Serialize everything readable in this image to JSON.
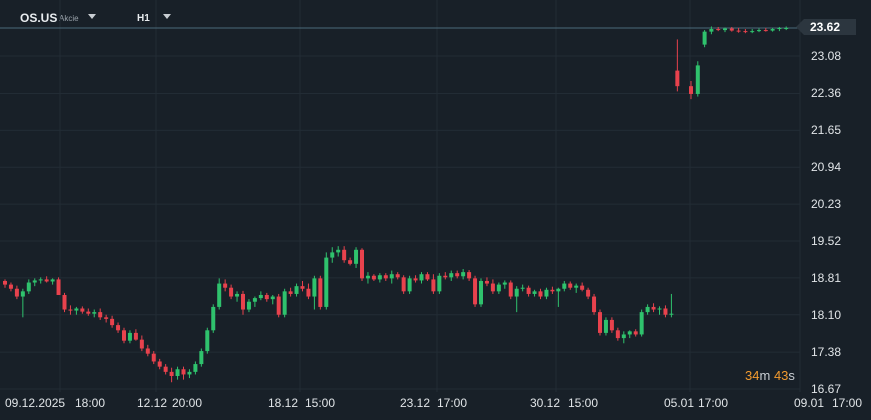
{
  "toolbar": {
    "symbol": "OS.US",
    "instrument_type": "Akcie",
    "timeframe": "H1"
  },
  "price_tag": "23.62",
  "countdown": {
    "minutes": "34",
    "minutes_unit": "m",
    "seconds": "43",
    "seconds_unit": "s"
  },
  "colors": {
    "background": "#182028",
    "up": "#2fc26d",
    "down": "#e8424d",
    "grid": "#222c35",
    "price_line": "#4a6a7a"
  },
  "chart_data": {
    "type": "candlestick",
    "y_ticks": [
      "23.62",
      "23.08",
      "22.36",
      "21.65",
      "20.94",
      "20.23",
      "19.52",
      "18.81",
      "18.10",
      "17.38",
      "16.67"
    ],
    "x_ticks": [
      "09.12.2025",
      "18:00",
      "12.12",
      "20:00",
      "18.12",
      "15:00",
      "23.12",
      "17:00",
      "30.12",
      "15:00",
      "05.01",
      "17:00",
      "09.01",
      "17:00"
    ],
    "ylim": [
      16.67,
      23.62
    ],
    "last_price": 23.62,
    "series": [
      {
        "values": [
          [
            18.75,
            18.78,
            18.62,
            18.68
          ],
          [
            18.68,
            18.72,
            18.55,
            18.6
          ],
          [
            18.6,
            18.66,
            18.4,
            18.45
          ],
          [
            18.45,
            18.6,
            18.05,
            18.55
          ],
          [
            18.55,
            18.78,
            18.5,
            18.72
          ],
          [
            18.72,
            18.8,
            18.65,
            18.76
          ],
          [
            18.76,
            18.82,
            18.7,
            18.78
          ],
          [
            18.78,
            18.84,
            18.72,
            18.74
          ],
          [
            18.74,
            18.8,
            18.68,
            18.78
          ],
          [
            18.78,
            18.82,
            18.6,
            18.48
          ],
          [
            18.48,
            18.52,
            18.15,
            18.2
          ],
          [
            18.2,
            18.28,
            18.1,
            18.18
          ],
          [
            18.18,
            18.25,
            18.1,
            18.22
          ],
          [
            18.22,
            18.26,
            18.12,
            18.16
          ],
          [
            18.16,
            18.22,
            18.08,
            18.12
          ],
          [
            18.12,
            18.2,
            18.05,
            18.15
          ],
          [
            18.15,
            18.22,
            18.0,
            18.05
          ],
          [
            18.05,
            18.1,
            17.95,
            18.02
          ],
          [
            18.02,
            18.08,
            17.85,
            17.9
          ],
          [
            17.9,
            17.95,
            17.75,
            17.8
          ],
          [
            17.8,
            17.85,
            17.55,
            17.6
          ],
          [
            17.6,
            17.8,
            17.55,
            17.75
          ],
          [
            17.75,
            17.82,
            17.6,
            17.62
          ],
          [
            17.62,
            17.7,
            17.4,
            17.45
          ],
          [
            17.45,
            17.52,
            17.3,
            17.35
          ],
          [
            17.35,
            17.4,
            17.15,
            17.2
          ],
          [
            17.2,
            17.25,
            17.05,
            17.1
          ],
          [
            17.1,
            17.15,
            16.95,
            17.0
          ],
          [
            17.0,
            17.08,
            16.8,
            16.92
          ],
          [
            16.92,
            17.1,
            16.85,
            17.05
          ],
          [
            17.05,
            17.1,
            16.85,
            16.95
          ],
          [
            16.95,
            17.05,
            16.88,
            17.0
          ],
          [
            17.0,
            17.2,
            16.95,
            17.15
          ],
          [
            17.15,
            17.45,
            17.1,
            17.4
          ],
          [
            17.4,
            17.85,
            17.35,
            17.8
          ],
          [
            17.8,
            18.3,
            17.75,
            18.25
          ],
          [
            18.25,
            18.8,
            18.2,
            18.7
          ],
          [
            18.7,
            18.78,
            18.55,
            18.62
          ],
          [
            18.62,
            18.68,
            18.4,
            18.45
          ],
          [
            18.45,
            18.55,
            18.35,
            18.5
          ],
          [
            18.5,
            18.56,
            18.1,
            18.2
          ],
          [
            18.2,
            18.4,
            18.15,
            18.35
          ],
          [
            18.35,
            18.45,
            18.25,
            18.42
          ],
          [
            18.42,
            18.55,
            18.38,
            18.48
          ],
          [
            18.48,
            18.52,
            18.35,
            18.4
          ],
          [
            18.4,
            18.48,
            18.3,
            18.45
          ],
          [
            18.45,
            18.5,
            18.05,
            18.1
          ],
          [
            18.1,
            18.6,
            18.05,
            18.55
          ],
          [
            18.55,
            18.62,
            18.45,
            18.5
          ],
          [
            18.5,
            18.7,
            18.45,
            18.65
          ],
          [
            18.65,
            18.75,
            18.55,
            18.6
          ],
          [
            18.6,
            18.7,
            18.4,
            18.45
          ],
          [
            18.45,
            18.85,
            18.2,
            18.8
          ],
          [
            18.8,
            18.85,
            18.2,
            18.25
          ],
          [
            18.25,
            19.3,
            18.2,
            19.2
          ],
          [
            19.2,
            19.4,
            19.1,
            19.3
          ],
          [
            19.3,
            19.42,
            19.22,
            19.35
          ],
          [
            19.35,
            19.42,
            19.1,
            19.15
          ],
          [
            19.15,
            19.2,
            19.05,
            19.08
          ],
          [
            19.08,
            19.4,
            19.0,
            19.35
          ],
          [
            19.35,
            19.38,
            18.75,
            18.8
          ],
          [
            18.8,
            18.92,
            18.7,
            18.85
          ],
          [
            18.85,
            18.88,
            18.75,
            18.78
          ],
          [
            18.78,
            18.9,
            18.72,
            18.86
          ],
          [
            18.86,
            18.9,
            18.75,
            18.8
          ],
          [
            18.8,
            18.95,
            18.7,
            18.88
          ],
          [
            18.88,
            18.92,
            18.78,
            18.82
          ],
          [
            18.82,
            18.86,
            18.5,
            18.55
          ],
          [
            18.55,
            18.85,
            18.5,
            18.8
          ],
          [
            18.8,
            18.86,
            18.72,
            18.76
          ],
          [
            18.76,
            18.92,
            18.7,
            18.88
          ],
          [
            18.88,
            18.92,
            18.75,
            18.78
          ],
          [
            18.78,
            18.88,
            18.5,
            18.55
          ],
          [
            18.55,
            18.9,
            18.5,
            18.85
          ],
          [
            18.85,
            18.92,
            18.78,
            18.82
          ],
          [
            18.82,
            18.95,
            18.75,
            18.9
          ],
          [
            18.9,
            18.95,
            18.8,
            18.84
          ],
          [
            18.84,
            18.98,
            18.78,
            18.92
          ],
          [
            18.92,
            18.96,
            18.75,
            18.8
          ],
          [
            18.8,
            18.85,
            18.25,
            18.3
          ],
          [
            18.3,
            18.8,
            18.25,
            18.75
          ],
          [
            18.75,
            18.82,
            18.65,
            18.7
          ],
          [
            18.7,
            18.78,
            18.5,
            18.55
          ],
          [
            18.55,
            18.72,
            18.5,
            18.68
          ],
          [
            18.68,
            18.76,
            18.6,
            18.72
          ],
          [
            18.72,
            18.76,
            18.4,
            18.45
          ],
          [
            18.45,
            18.65,
            18.15,
            18.6
          ],
          [
            18.6,
            18.68,
            18.55,
            18.62
          ],
          [
            18.62,
            18.66,
            18.45,
            18.5
          ],
          [
            18.5,
            18.58,
            18.45,
            18.55
          ],
          [
            18.55,
            18.6,
            18.4,
            18.45
          ],
          [
            18.45,
            18.62,
            18.4,
            18.58
          ],
          [
            18.58,
            18.64,
            18.5,
            18.55
          ],
          [
            18.55,
            18.62,
            18.25,
            18.6
          ],
          [
            18.6,
            18.75,
            18.55,
            18.7
          ],
          [
            18.7,
            18.74,
            18.58,
            18.62
          ],
          [
            18.62,
            18.7,
            18.52,
            18.66
          ],
          [
            18.66,
            18.72,
            18.55,
            18.58
          ],
          [
            18.58,
            18.62,
            18.4,
            18.45
          ],
          [
            18.45,
            18.5,
            18.1,
            18.15
          ],
          [
            18.15,
            18.2,
            17.7,
            17.75
          ],
          [
            17.75,
            18.05,
            17.7,
            18.0
          ],
          [
            18.0,
            18.05,
            17.75,
            17.8
          ],
          [
            17.8,
            17.85,
            17.6,
            17.65
          ],
          [
            17.65,
            17.78,
            17.55,
            17.72
          ],
          [
            17.72,
            17.8,
            17.65,
            17.78
          ],
          [
            17.78,
            17.82,
            17.68,
            17.72
          ],
          [
            17.72,
            18.2,
            17.68,
            18.15
          ],
          [
            18.15,
            18.3,
            18.1,
            18.25
          ],
          [
            18.25,
            18.32,
            18.15,
            18.2
          ],
          [
            18.2,
            18.26,
            18.1,
            18.22
          ],
          [
            18.22,
            18.28,
            18.05,
            18.1
          ],
          [
            18.1,
            18.5,
            18.05,
            18.12
          ],
          [
            22.8,
            23.4,
            22.4,
            22.5
          ],
          [
            22.5,
            22.6,
            22.25,
            22.35
          ],
          [
            22.35,
            22.98,
            22.3,
            22.9
          ],
          [
            23.3,
            23.58,
            23.25,
            23.55
          ],
          [
            23.55,
            23.65,
            23.5,
            23.6
          ],
          [
            23.6,
            23.64,
            23.56,
            23.58
          ],
          [
            23.58,
            23.63,
            23.54,
            23.61
          ],
          [
            23.61,
            23.64,
            23.55,
            23.57
          ],
          [
            23.57,
            23.62,
            23.53,
            23.56
          ],
          [
            23.56,
            23.6,
            23.52,
            23.55
          ],
          [
            23.55,
            23.6,
            23.52,
            23.56
          ],
          [
            23.56,
            23.61,
            23.54,
            23.58
          ],
          [
            23.58,
            23.62,
            23.55,
            23.57
          ],
          [
            23.57,
            23.62,
            23.55,
            23.6
          ],
          [
            23.6,
            23.64,
            23.56,
            23.62
          ],
          [
            23.62,
            23.65,
            23.58,
            23.62
          ]
        ]
      }
    ]
  }
}
